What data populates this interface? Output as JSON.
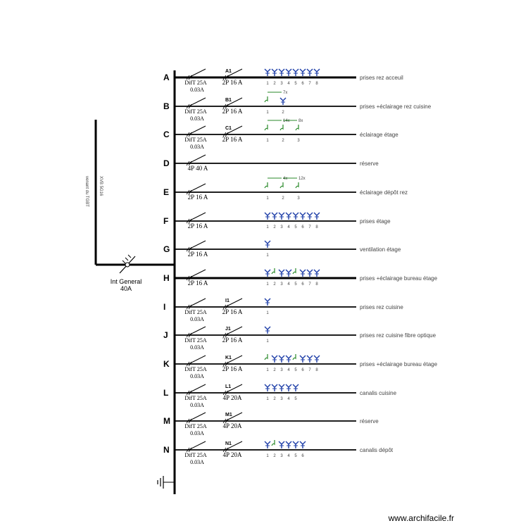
{
  "feeder": {
    "label": "Int General",
    "rating": "40A",
    "cable": "venant du TGBT",
    "cable_ref": "XVB 5G16"
  },
  "colors": {
    "line": "#000000",
    "socket": "#1f3fa8",
    "lighting": "#2a8a2a",
    "text": "#444444"
  },
  "rows": [
    {
      "letter": "A",
      "diff": "DifT 25A",
      "sens": "0.03A",
      "tag": "A1",
      "breaker": "2P 16 A",
      "circuit": "prises rez acceuil",
      "items": [
        {
          "kind": "socket",
          "num": "1"
        },
        {
          "kind": "socket",
          "num": "2"
        },
        {
          "kind": "socket",
          "num": "3"
        },
        {
          "kind": "socket",
          "num": "4"
        },
        {
          "kind": "socket",
          "num": "5"
        },
        {
          "kind": "socket",
          "num": "6"
        },
        {
          "kind": "socket",
          "num": "7"
        },
        {
          "kind": "socket",
          "num": "8"
        }
      ]
    },
    {
      "letter": "B",
      "diff": "DifT 25A",
      "sens": "0.03A",
      "tag": "B1",
      "breaker": "2P 16 A",
      "circuit": "prises +éclairage  rez cuisine",
      "items": [
        {
          "kind": "light",
          "num": "1",
          "mult": "7x"
        },
        {
          "kind": "socket",
          "num": "2"
        }
      ]
    },
    {
      "letter": "C",
      "diff": "DifT 25A",
      "sens": "0.03A",
      "tag": "C1",
      "breaker": "2P 16 A",
      "circuit": "éclairage étage",
      "items": [
        {
          "kind": "light",
          "num": "1",
          "mult": "14x"
        },
        {
          "kind": "light",
          "num": "2",
          "mult": "8x"
        },
        {
          "kind": "light",
          "num": "3"
        }
      ]
    },
    {
      "letter": "D",
      "diff": "",
      "sens": "",
      "tag": "",
      "breaker": "4P 40 A",
      "circuit": "réserve",
      "items": []
    },
    {
      "letter": "E",
      "diff": "",
      "sens": "",
      "tag": "",
      "breaker": "2P 16 A",
      "circuit": "éclairage dépôt rez",
      "items": [
        {
          "kind": "light",
          "num": "1",
          "mult": "4x"
        },
        {
          "kind": "light",
          "num": "2",
          "mult": "12x"
        },
        {
          "kind": "light",
          "num": "3"
        }
      ]
    },
    {
      "letter": "F",
      "diff": "",
      "sens": "",
      "tag": "",
      "breaker": "2P 16 A",
      "circuit": "prises étage",
      "items": [
        {
          "kind": "socket",
          "num": "1"
        },
        {
          "kind": "socket",
          "num": "2"
        },
        {
          "kind": "socket",
          "num": "3"
        },
        {
          "kind": "socket",
          "num": "4"
        },
        {
          "kind": "socket",
          "num": "5"
        },
        {
          "kind": "socket",
          "num": "6"
        },
        {
          "kind": "socket",
          "num": "7"
        },
        {
          "kind": "socket",
          "num": "8"
        }
      ]
    },
    {
      "letter": "G",
      "diff": "",
      "sens": "",
      "tag": "",
      "breaker": "2P 16 A",
      "circuit": "ventilation étage",
      "items": [
        {
          "kind": "socket",
          "num": "1"
        }
      ]
    },
    {
      "letter": "H",
      "diff": "",
      "sens": "",
      "tag": "",
      "breaker": "2P 16 A",
      "circuit": "prises +éclairage bureau étage",
      "items": [
        {
          "kind": "socket",
          "num": "1"
        },
        {
          "kind": "light",
          "num": "2"
        },
        {
          "kind": "socket",
          "num": "3"
        },
        {
          "kind": "socket",
          "num": "4"
        },
        {
          "kind": "light",
          "num": "5"
        },
        {
          "kind": "socket",
          "num": "6"
        },
        {
          "kind": "socket",
          "num": "7"
        },
        {
          "kind": "socket",
          "num": "8"
        }
      ]
    },
    {
      "letter": "I",
      "diff": "DifT 25A",
      "sens": "0.03A",
      "tag": "I1",
      "breaker": "2P 16 A",
      "circuit": "prises rez cuisine",
      "items": [
        {
          "kind": "socket",
          "num": "1"
        }
      ]
    },
    {
      "letter": "J",
      "diff": "DifT 25A",
      "sens": "0.03A",
      "tag": "J1",
      "breaker": "2P 16 A",
      "circuit": "prises rez cuisine fibre optique",
      "items": [
        {
          "kind": "socket",
          "num": "1"
        }
      ]
    },
    {
      "letter": "K",
      "diff": "DifT 25A",
      "sens": "0.03A",
      "tag": "K1",
      "breaker": "2P 16 A",
      "circuit": "prises +éclairage bureau étage",
      "items": [
        {
          "kind": "light",
          "num": "1"
        },
        {
          "kind": "socket",
          "num": "2"
        },
        {
          "kind": "socket",
          "num": "3"
        },
        {
          "kind": "socket",
          "num": "4"
        },
        {
          "kind": "light",
          "num": "5"
        },
        {
          "kind": "socket",
          "num": "6"
        },
        {
          "kind": "socket",
          "num": "7"
        },
        {
          "kind": "socket",
          "num": "8"
        }
      ]
    },
    {
      "letter": "L",
      "diff": "DifT 25A",
      "sens": "0.03A",
      "tag": "L1",
      "breaker": "4P 20A",
      "circuit": "canalis cuisine",
      "items": [
        {
          "kind": "socket",
          "num": "1"
        },
        {
          "kind": "socket",
          "num": "2"
        },
        {
          "kind": "socket",
          "num": "3"
        },
        {
          "kind": "socket",
          "num": "4"
        },
        {
          "kind": "socket",
          "num": "5"
        }
      ]
    },
    {
      "letter": "M",
      "diff": "DifT 25A",
      "sens": "0.03A",
      "tag": "M1",
      "breaker": "4P 20A",
      "circuit": "réserve",
      "items": []
    },
    {
      "letter": "N",
      "diff": "DifT 25A",
      "sens": "0.03A",
      "tag": "N1",
      "breaker": "4P 20A",
      "circuit": "canalis dépôt",
      "items": [
        {
          "kind": "socket",
          "num": "1"
        },
        {
          "kind": "light",
          "num": "2"
        },
        {
          "kind": "socket",
          "num": "3"
        },
        {
          "kind": "socket",
          "num": "4"
        },
        {
          "kind": "socket",
          "num": "5"
        },
        {
          "kind": "socket",
          "num": "6"
        }
      ]
    }
  ],
  "watermark": "www.archifacile.fr"
}
